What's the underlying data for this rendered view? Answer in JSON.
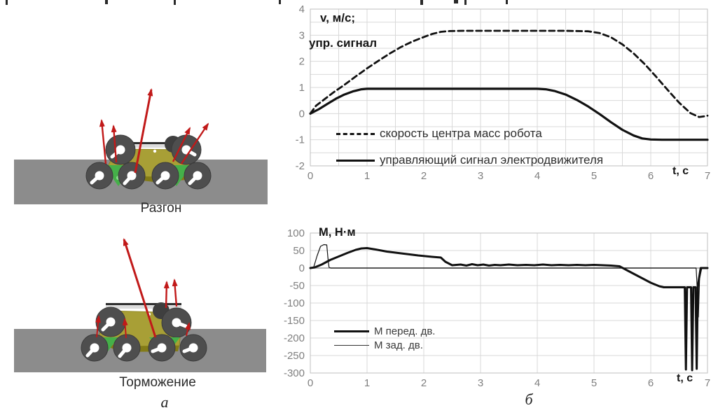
{
  "left_panel": {
    "acceleration_label": "Разгон",
    "braking_label": "Торможение",
    "caption": "а"
  },
  "right_panel": {
    "caption": "б"
  },
  "chart_data": [
    {
      "id": "velocity-chart",
      "type": "line",
      "title_lines": [
        "v, м/с;",
        "упр. сигнал"
      ],
      "xlabel": "t, с",
      "xlim": [
        0,
        7
      ],
      "ylim": [
        -2,
        4
      ],
      "x_ticks": [
        0,
        1,
        2,
        3,
        4,
        5,
        6,
        7
      ],
      "y_ticks": [
        -2,
        -1,
        0,
        1,
        2,
        3,
        4
      ],
      "grid": {
        "x_step": 0.5,
        "y_step": 0.5
      },
      "zero_line": false,
      "legend_position": "inside-bottom-left",
      "series": [
        {
          "name": "скорость центра масс робота",
          "style": "dashed",
          "width": 2.8,
          "x": [
            0,
            0.1,
            0.25,
            0.4,
            0.6,
            0.8,
            1.0,
            1.2,
            1.4,
            1.6,
            1.8,
            2.0,
            2.15,
            2.3,
            2.45,
            2.7,
            3.0,
            3.5,
            4.0,
            4.5,
            4.9,
            5.1,
            5.3,
            5.5,
            5.7,
            5.9,
            6.1,
            6.3,
            6.5,
            6.7,
            6.85,
            6.95,
            7.0
          ],
          "y": [
            0,
            0.3,
            0.55,
            0.8,
            1.1,
            1.42,
            1.73,
            2.02,
            2.3,
            2.55,
            2.76,
            2.93,
            3.05,
            3.13,
            3.16,
            3.17,
            3.17,
            3.17,
            3.17,
            3.17,
            3.15,
            3.08,
            2.92,
            2.65,
            2.3,
            1.88,
            1.4,
            0.9,
            0.42,
            0.02,
            -0.13,
            -0.1,
            -0.08
          ]
        },
        {
          "name": "управляющий сигнал электродвижителя",
          "style": "solid",
          "width": 3.2,
          "x": [
            0,
            0.15,
            0.3,
            0.45,
            0.6,
            0.75,
            0.9,
            1.0,
            1.5,
            2.0,
            2.5,
            3.0,
            3.5,
            4.0,
            4.15,
            4.3,
            4.5,
            4.7,
            4.9,
            5.1,
            5.3,
            5.5,
            5.7,
            5.85,
            6.0,
            6.2,
            6.5,
            7.0
          ],
          "y": [
            0,
            0.17,
            0.37,
            0.57,
            0.73,
            0.85,
            0.93,
            0.95,
            0.95,
            0.95,
            0.95,
            0.95,
            0.95,
            0.95,
            0.93,
            0.87,
            0.73,
            0.52,
            0.27,
            -0.02,
            -0.33,
            -0.62,
            -0.84,
            -0.95,
            -0.99,
            -1.0,
            -1.0,
            -1.0
          ]
        }
      ]
    },
    {
      "id": "torque-chart",
      "type": "line",
      "title_lines": [
        "М, Н·м"
      ],
      "xlabel": "t, с",
      "xlim": [
        0,
        7
      ],
      "ylim": [
        -300,
        100
      ],
      "x_ticks": [
        0,
        1,
        2,
        3,
        4,
        5,
        6,
        7
      ],
      "y_ticks": [
        -300,
        -250,
        -200,
        -150,
        -100,
        -50,
        0,
        50,
        100
      ],
      "grid": {
        "x_step": 1,
        "y_step": 50
      },
      "zero_line": true,
      "legend_position": "inside-middle-left",
      "series": [
        {
          "name": "М перед. дв.",
          "style": "solid",
          "width": 3,
          "x": [
            0,
            0.08,
            0.2,
            0.35,
            0.5,
            0.65,
            0.8,
            0.9,
            1.0,
            1.15,
            1.35,
            1.6,
            1.9,
            2.15,
            2.3,
            2.38,
            2.5,
            2.65,
            2.75,
            2.85,
            2.95,
            3.05,
            3.15,
            3.25,
            3.35,
            3.5,
            3.65,
            3.8,
            3.95,
            4.1,
            4.25,
            4.4,
            4.55,
            4.7,
            4.85,
            5.0,
            5.15,
            5.3,
            5.45,
            5.6,
            5.8,
            6.0,
            6.15,
            6.23,
            6.45,
            6.6,
            6.62,
            6.64,
            6.66,
            6.71,
            6.73,
            6.75,
            6.79,
            6.81,
            6.83,
            6.85,
            6.88,
            7.0
          ],
          "y": [
            0,
            2,
            10,
            23,
            33,
            43,
            52,
            56,
            57,
            53,
            47,
            42,
            36,
            32,
            30,
            18,
            8,
            10,
            7,
            11,
            8,
            10,
            7,
            9,
            8,
            10,
            8,
            9,
            8,
            10,
            8,
            9,
            8,
            9,
            8,
            9,
            8,
            7,
            5,
            -8,
            -25,
            -42,
            -52,
            -55,
            -55,
            -55,
            -290,
            -55,
            -55,
            -55,
            -292,
            -55,
            -55,
            -288,
            -55,
            -30,
            0,
            0
          ]
        },
        {
          "name": "М зад. дв.",
          "style": "solid",
          "width": 1.2,
          "x": [
            0,
            0.06,
            0.12,
            0.18,
            0.24,
            0.29,
            0.31,
            0.33,
            0.36,
            1.0,
            2.0,
            3.0,
            4.0,
            5.0,
            6.0,
            6.6,
            6.8,
            6.82,
            6.84,
            6.86,
            6.9,
            7.0
          ],
          "y": [
            0,
            3,
            35,
            62,
            67,
            66,
            30,
            2,
            0,
            0,
            0,
            0,
            0,
            0,
            0,
            0,
            0,
            -60,
            -140,
            -30,
            0,
            0
          ]
        }
      ]
    }
  ]
}
